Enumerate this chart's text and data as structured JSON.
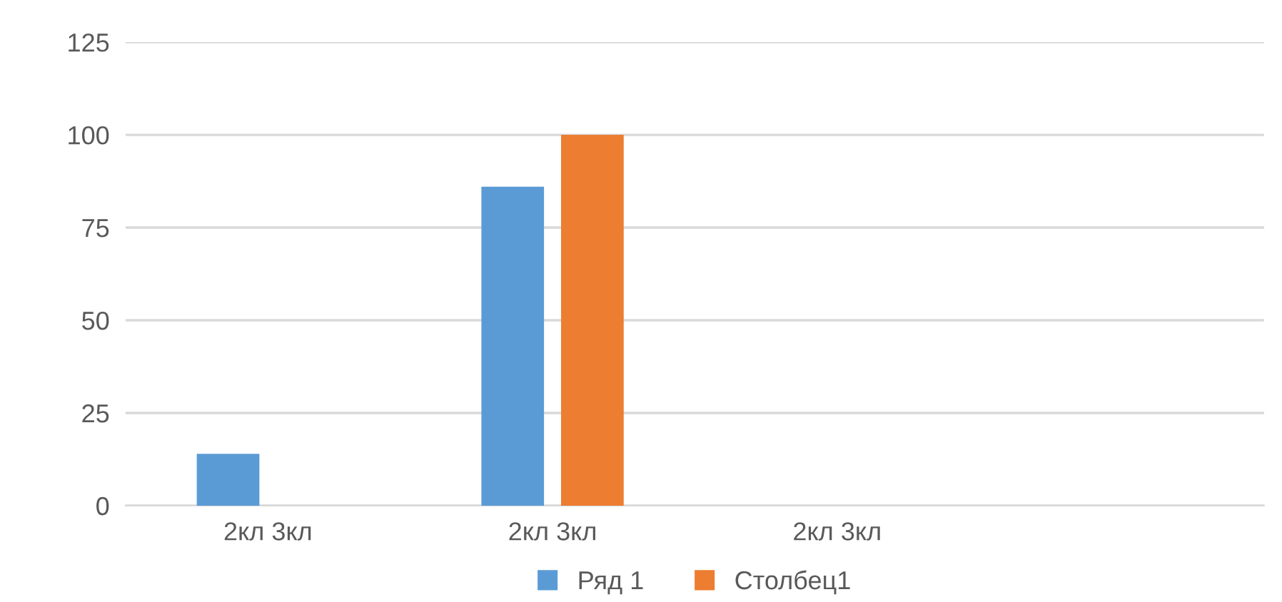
{
  "chart_data": {
    "type": "bar",
    "categories": [
      "2кл 3кл",
      "2кл 3кл",
      "2кл 3кл",
      null
    ],
    "series": [
      {
        "name": "Ряд 1",
        "color": "#5b9bd5",
        "values": [
          14,
          86,
          null,
          null
        ]
      },
      {
        "name": "Столбец1",
        "color": "#ed7d31",
        "values": [
          null,
          100,
          null,
          null
        ]
      }
    ],
    "ylim": [
      0,
      125
    ],
    "yticks": [
      0,
      25,
      50,
      75,
      100,
      125
    ],
    "grid": "y",
    "legend": "bottom"
  }
}
